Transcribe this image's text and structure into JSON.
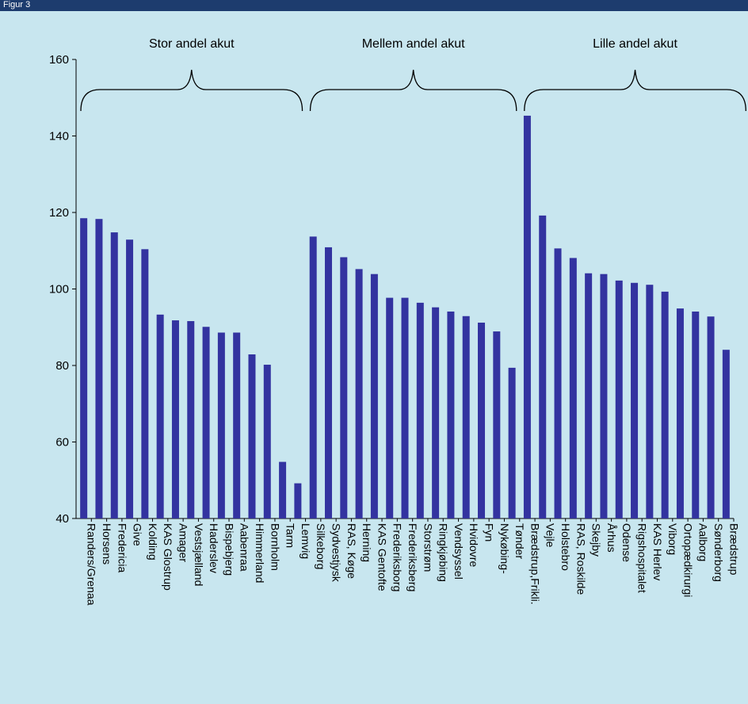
{
  "header": {
    "title": "Figur 3"
  },
  "colors": {
    "bar": "#3333a0",
    "background": "#c8e6ef",
    "header": "#1d3c6e"
  },
  "chart_data": {
    "type": "bar",
    "ylim": [
      40,
      160
    ],
    "yticks": [
      40,
      60,
      80,
      100,
      120,
      140,
      160
    ],
    "grid": false,
    "groups": [
      {
        "label": "Stor andel akut",
        "start": 0,
        "end": 14
      },
      {
        "label": "Mellem andel akut",
        "start": 15,
        "end": 28
      },
      {
        "label": "Lille andel akut",
        "start": 29,
        "end": 43
      }
    ],
    "categories": [
      "Randers/Grenaa",
      "Horsens",
      "Fredericia",
      "Give",
      "Kolding",
      "KAS Glostrup",
      "Amager",
      "Vestsjælland",
      "Haderslev",
      "Bispebjerg",
      "Aabenraa",
      "Himmerland",
      "Bornholm",
      "Tarm",
      "Lemvig",
      "Silkeborg",
      "Sydvestjysk",
      "RAS, Køge",
      "Herning",
      "KAS Gentofte",
      "Frederiksborg",
      "Frederiksberg",
      "Storstrøm",
      "Ringkjøbing",
      "Vendsyssel",
      "Hvidovre",
      "Fyn",
      "Nykøbing-",
      "Tønder",
      "Brædstrup,Frikli.",
      "Vejle",
      "Holstebro",
      "RAS, Roskilde",
      "Skejby",
      "Århus",
      "Odense",
      "Rigshospitalet",
      "KAS Herlev",
      "Viborg",
      "Ortopædkirurgi",
      "Aalborg",
      "Sønderborg",
      "Brædstrup"
    ],
    "values": [
      118.5,
      118.3,
      114.8,
      112.9,
      110.4,
      93.3,
      91.8,
      91.6,
      90.1,
      88.6,
      88.6,
      82.9,
      80.2,
      54.8,
      49.2,
      113.7,
      110.9,
      108.3,
      105.2,
      103.9,
      97.7,
      97.7,
      96.4,
      95.2,
      94.1,
      92.9,
      91.2,
      88.9,
      79.4,
      145.3,
      119.2,
      110.6,
      108.1,
      104.1,
      103.9,
      102.2,
      101.6,
      101.1,
      99.3,
      94.9,
      94.1,
      92.8,
      84.1
    ]
  }
}
